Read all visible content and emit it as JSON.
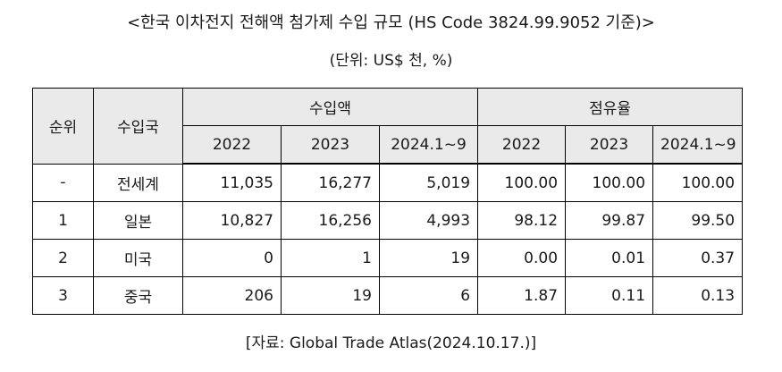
{
  "title": "<한국 이차전지 전해액 첨가제 수입 규모 (HS Code 3824.99.9052 기준)>",
  "unit": "(단위: US$ 천, %)",
  "table": {
    "header": {
      "rank": "순위",
      "country": "수입국",
      "import_amount": "수입액",
      "share": "점유율",
      "years": [
        "2022",
        "2023",
        "2024.1~9"
      ]
    },
    "rows": [
      {
        "rank": "-",
        "country": "전세계",
        "amount": [
          "11,035",
          "16,277",
          "5,019"
        ],
        "share": [
          "100.00",
          "100.00",
          "100.00"
        ]
      },
      {
        "rank": "1",
        "country": "일본",
        "amount": [
          "10,827",
          "16,256",
          "4,993"
        ],
        "share": [
          "98.12",
          "99.87",
          "99.50"
        ]
      },
      {
        "rank": "2",
        "country": "미국",
        "amount": [
          "0",
          "1",
          "19"
        ],
        "share": [
          "0.00",
          "0.01",
          "0.37"
        ]
      },
      {
        "rank": "3",
        "country": "중국",
        "amount": [
          "206",
          "19",
          "6"
        ],
        "share": [
          "1.87",
          "0.11",
          "0.13"
        ]
      }
    ]
  },
  "source": "[자료: Global Trade Atlas(2024.10.17.)]"
}
